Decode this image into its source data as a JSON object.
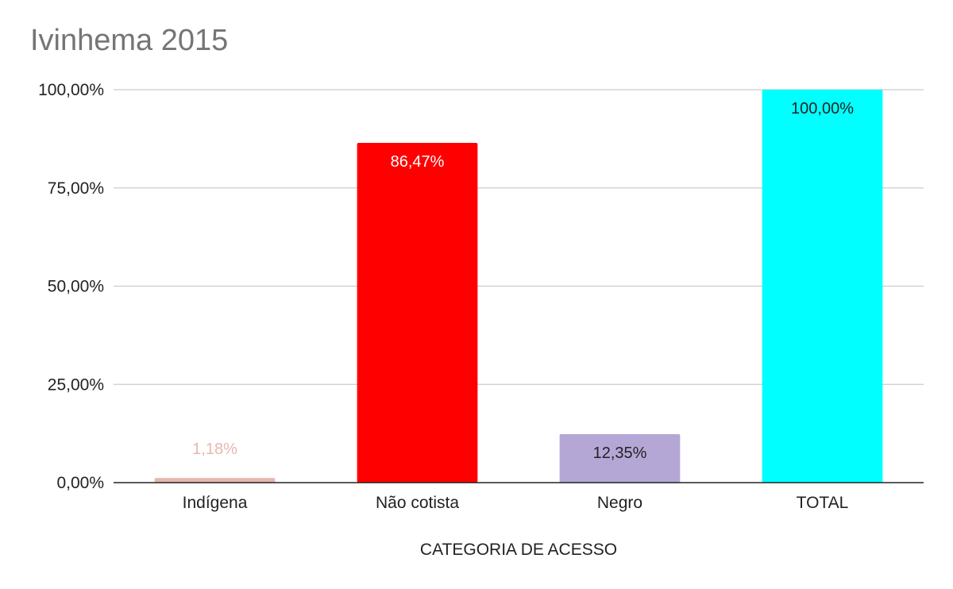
{
  "chart_data": {
    "type": "bar",
    "title": "Ivinhema 2015",
    "xlabel": "CATEGORIA DE ACESSO",
    "ylabel": "",
    "categories": [
      "Indígena",
      "Não cotista",
      "Negro",
      "TOTAL"
    ],
    "values": [
      1.18,
      86.47,
      12.35,
      100.0
    ],
    "value_labels": [
      "1,18%",
      "86,47%",
      "12,35%",
      "100,00%"
    ],
    "colors": [
      "#e6b8af",
      "#ff0000",
      "#b4a7d6",
      "#00ffff"
    ],
    "label_colors": [
      "#e6b8af",
      "#ffffff",
      "#222222",
      "#222222"
    ],
    "ylim": [
      0,
      100
    ],
    "yticks": [
      0,
      25,
      50,
      75,
      100
    ],
    "ytick_labels": [
      "0,00%",
      "25,00%",
      "50,00%",
      "75,00%",
      "100,00%"
    ],
    "grid": true,
    "legend": "none"
  }
}
